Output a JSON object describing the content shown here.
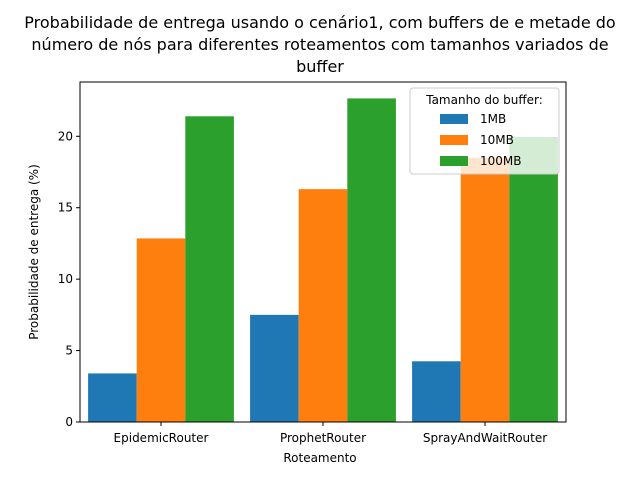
{
  "chart_data": {
    "type": "bar",
    "title_lines": [
      "Probabilidade de entrega usando o cenário1, com buffers de e metade do",
      "número de nós para diferentes roteamentos com tamanhos variados de",
      "buffer"
    ],
    "xlabel": "Roteamento",
    "ylabel": "Probabilidade de entrega (%)",
    "categories": [
      "EpidemicRouter",
      "ProphetRouter",
      "SprayAndWaitRouter"
    ],
    "ylim": [
      0,
      23.8
    ],
    "yticks": [
      0,
      5,
      10,
      15,
      20
    ],
    "legend": {
      "title": "Tamanho do buffer:",
      "placement": "top-right"
    },
    "series": [
      {
        "name": "1MB",
        "color": "#1f77b4",
        "values": [
          3.4,
          7.5,
          4.25
        ]
      },
      {
        "name": "10MB",
        "color": "#ff7f0e",
        "values": [
          12.85,
          16.3,
          18.5
        ]
      },
      {
        "name": "100MB",
        "color": "#2ca02c",
        "values": [
          21.4,
          22.65,
          19.95
        ]
      }
    ],
    "grid": false
  }
}
